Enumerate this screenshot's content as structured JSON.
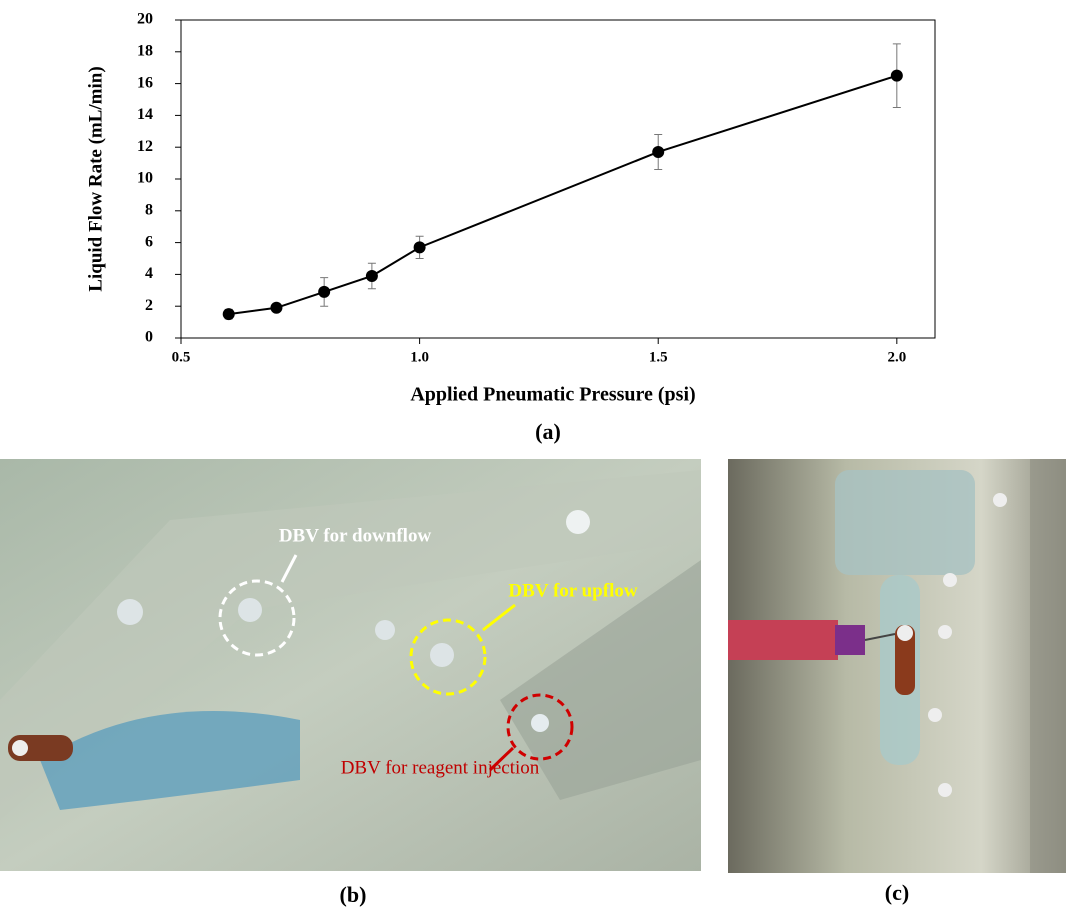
{
  "chart_data": {
    "type": "line",
    "x_label": "Applied Pneumatic Pressure (psi)",
    "y_label": "Liquid Flow Rate (mL/min)",
    "x": [
      0.6,
      0.7,
      0.8,
      0.9,
      1.0,
      1.5,
      2.0
    ],
    "series": [
      {
        "color": "#000000",
        "values": [
          1.5,
          1.9,
          2.9,
          3.9,
          5.7,
          11.7,
          16.5
        ],
        "errors": [
          0.3,
          0.2,
          0.9,
          0.8,
          0.7,
          1.1,
          2.0
        ]
      }
    ],
    "xlim": [
      0.5,
      2.08
    ],
    "xticks": [
      0.5,
      {
        "value": 1.0,
        "label": "1.0"
      },
      1.5,
      {
        "value": 2.0,
        "label": "2.0"
      }
    ],
    "ylim": [
      0,
      20
    ],
    "yticks": [
      0,
      2,
      4,
      6,
      8,
      10,
      12,
      14,
      16,
      18,
      20
    ],
    "grid": false
  },
  "panel_labels": [
    "(a)",
    "(b)",
    "(c)"
  ],
  "photo_annotations": [
    "DBV for downflow",
    "DBV for upflow",
    "DBV for reagent injection"
  ]
}
